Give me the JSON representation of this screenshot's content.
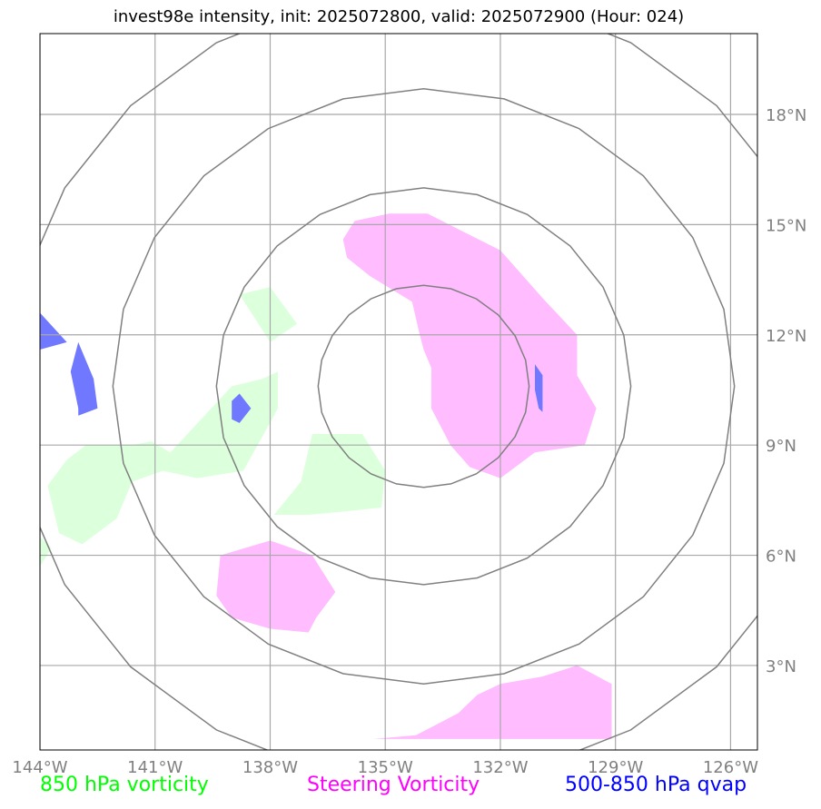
{
  "title": "invest98e intensity, init: 2025072800, valid: 2025072900 (Hour: 024)",
  "map": {
    "lon_range": [
      -144,
      -125.3
    ],
    "lat_range": [
      0.7,
      20.2
    ],
    "lon_ticks": [
      {
        "value": -144,
        "label": "144°W"
      },
      {
        "value": -141,
        "label": "141°W"
      },
      {
        "value": -138,
        "label": "138°W"
      },
      {
        "value": -135,
        "label": "135°W"
      },
      {
        "value": -132,
        "label": "132°W"
      },
      {
        "value": -129,
        "label": "129°W"
      },
      {
        "value": -126,
        "label": "126°W"
      }
    ],
    "lat_ticks": [
      {
        "value": 3,
        "label": "3°N"
      },
      {
        "value": 6,
        "label": "6°N"
      },
      {
        "value": 9,
        "label": "9°N"
      },
      {
        "value": 12,
        "label": "12°N"
      },
      {
        "value": 15,
        "label": "15°N"
      },
      {
        "value": 18,
        "label": "18°N"
      }
    ],
    "range_ring_center": {
      "lon": -134.0,
      "lat": 10.6
    },
    "range_ring_radii_deg": [
      2.75,
      5.4,
      8.1,
      10.8
    ],
    "grid_color": "#a8a8a8",
    "ring_color": "#808080"
  },
  "legend": {
    "vorticity": {
      "label": "850 hPa vorticity",
      "color": "#00ff00"
    },
    "steering": {
      "label": "Steering Vorticity",
      "color": "#ff00ff"
    },
    "qvap": {
      "label": "500-850 hPa qvap",
      "color": "#0000ff"
    }
  },
  "fields": {
    "steering_vorticity": {
      "color": "#ffbcff",
      "areas": [
        [
          [
            -134.9,
            15.3
          ],
          [
            -133.9,
            15.3
          ],
          [
            -132.0,
            14.3
          ],
          [
            -130.9,
            13.0
          ],
          [
            -130.0,
            12.0
          ],
          [
            -130.0,
            10.9
          ],
          [
            -129.5,
            10.0
          ],
          [
            -129.8,
            9.0
          ],
          [
            -131.1,
            8.8
          ],
          [
            -132.0,
            8.1
          ],
          [
            -132.8,
            8.4
          ],
          [
            -133.3,
            9.0
          ],
          [
            -133.8,
            10.0
          ],
          [
            -133.8,
            11.1
          ],
          [
            -134.0,
            11.6
          ],
          [
            -134.1,
            12.0
          ],
          [
            -134.3,
            12.9
          ],
          [
            -135.4,
            13.6
          ],
          [
            -136.0,
            14.1
          ],
          [
            -136.1,
            14.6
          ],
          [
            -135.8,
            15.1
          ]
        ],
        [
          [
            -139.3,
            6.0
          ],
          [
            -138.0,
            6.4
          ],
          [
            -136.9,
            6.0
          ],
          [
            -136.3,
            5.0
          ],
          [
            -136.8,
            4.3
          ],
          [
            -137.0,
            3.9
          ],
          [
            -138.0,
            4.0
          ],
          [
            -139.0,
            4.3
          ],
          [
            -139.4,
            4.9
          ]
        ],
        [
          [
            -135.3,
            1.0
          ],
          [
            -134.2,
            1.1
          ],
          [
            -133.1,
            1.7
          ],
          [
            -132.6,
            2.2
          ],
          [
            -132.0,
            2.5
          ],
          [
            -130.9,
            2.7
          ],
          [
            -130.0,
            3.0
          ],
          [
            -129.1,
            2.5
          ],
          [
            -129.1,
            1.0
          ]
        ]
      ]
    },
    "vorticity_850": {
      "color": "#dcffdc",
      "areas": [
        [
          [
            -140.6,
            8.8
          ],
          [
            -139.0,
            10.6
          ],
          [
            -138.2,
            10.8
          ],
          [
            -138.0,
            10.9
          ],
          [
            -137.8,
            11.0
          ],
          [
            -137.8,
            10.0
          ],
          [
            -137.9,
            9.8
          ],
          [
            -138.7,
            8.3
          ],
          [
            -139.9,
            8.1
          ],
          [
            -140.8,
            8.3
          ],
          [
            -141.6,
            8.0
          ],
          [
            -142.0,
            7.0
          ],
          [
            -142.9,
            6.3
          ],
          [
            -143.5,
            6.6
          ],
          [
            -143.8,
            7.9
          ],
          [
            -143.3,
            8.6
          ],
          [
            -142.8,
            9.0
          ],
          [
            -141.6,
            9.0
          ],
          [
            -141.1,
            9.1
          ]
        ],
        [
          [
            -138.8,
            13.1
          ],
          [
            -138.0,
            13.3
          ],
          [
            -137.3,
            12.3
          ],
          [
            -138.0,
            11.8
          ]
        ],
        [
          [
            -136.9,
            9.3
          ],
          [
            -135.6,
            9.3
          ],
          [
            -135.0,
            8.3
          ],
          [
            -135.1,
            7.3
          ],
          [
            -136.0,
            7.2
          ],
          [
            -137.0,
            7.1
          ],
          [
            -137.9,
            7.1
          ],
          [
            -137.2,
            8.0
          ]
        ],
        [
          [
            -144.0,
            6.5
          ],
          [
            -143.7,
            6.2
          ],
          [
            -144.0,
            5.7
          ]
        ]
      ]
    },
    "qvap_500_850": {
      "color": "#6f78ff",
      "areas": [
        [
          [
            -144.0,
            12.6
          ],
          [
            -143.3,
            11.8
          ],
          [
            -144.0,
            11.6
          ]
        ],
        [
          [
            -143.0,
            11.8
          ],
          [
            -142.6,
            10.8
          ],
          [
            -142.5,
            10.0
          ],
          [
            -143.0,
            9.8
          ],
          [
            -143.0,
            10.0
          ],
          [
            -143.2,
            11.0
          ]
        ],
        [
          [
            -138.8,
            10.4
          ],
          [
            -138.5,
            10.0
          ],
          [
            -138.8,
            9.6
          ],
          [
            -139.0,
            9.7
          ],
          [
            -139.0,
            10.2
          ]
        ],
        [
          [
            -131.1,
            11.2
          ],
          [
            -130.9,
            10.9
          ],
          [
            -130.9,
            9.9
          ],
          [
            -131.0,
            10.0
          ],
          [
            -131.1,
            10.5
          ]
        ]
      ]
    }
  }
}
